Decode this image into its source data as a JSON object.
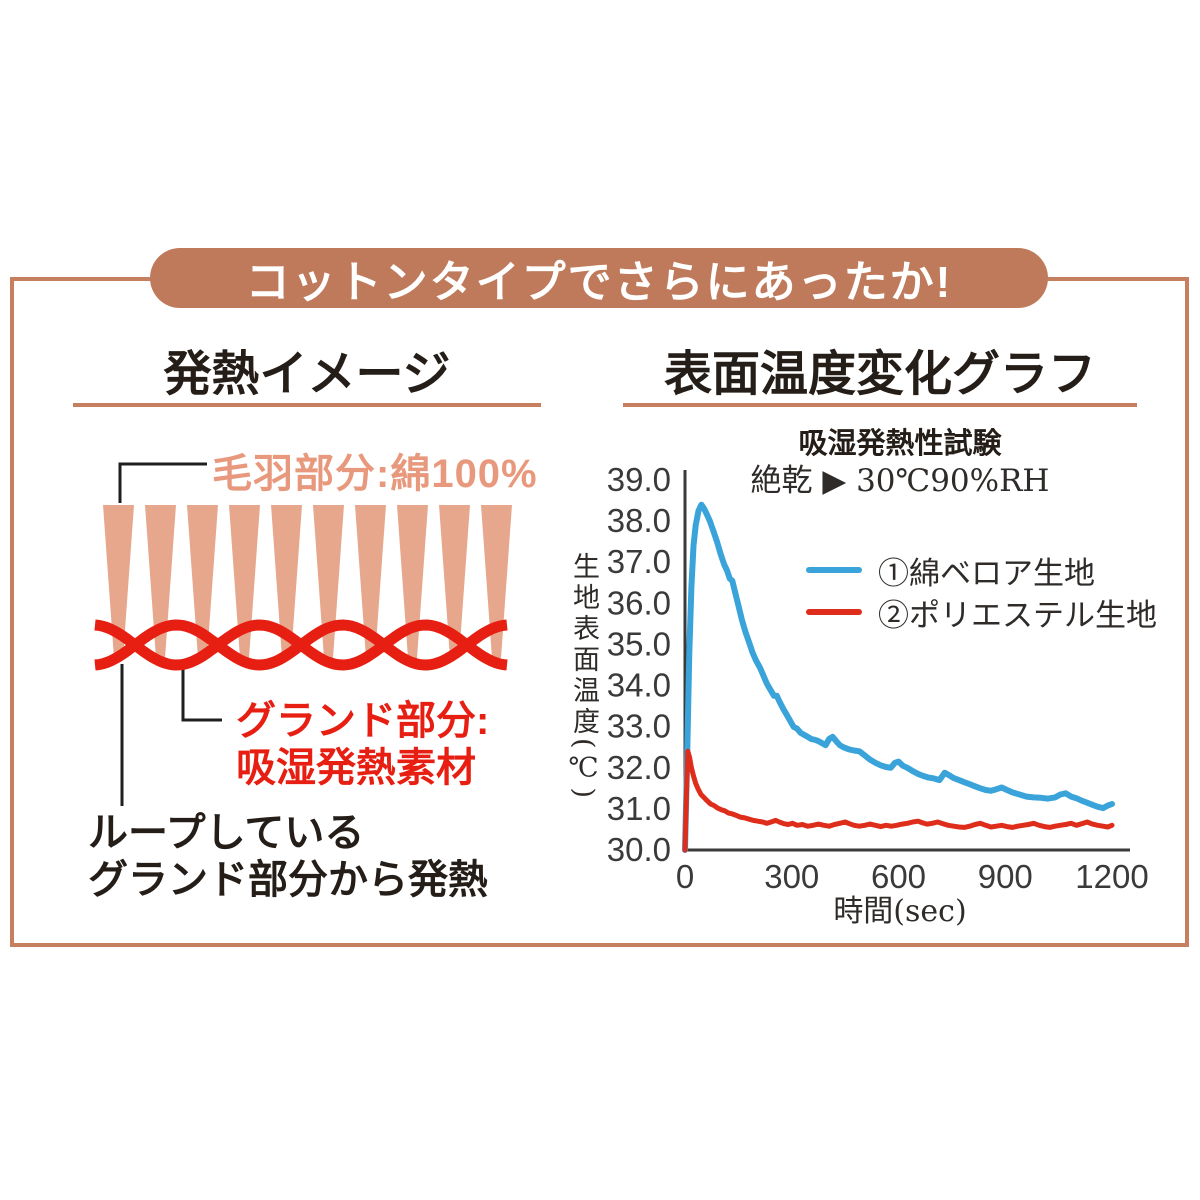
{
  "theme": {
    "banner_bg": "#bf7a5b",
    "frame_border": "#c6805f",
    "ink": "#241d18",
    "fiber": "#e7a78c",
    "fluff_text": "#e8997d",
    "diagram_red": "#e71f13",
    "axis": "#3a3a3a"
  },
  "banner": {
    "label": "コットンタイプでさらにあったか!"
  },
  "left_panel": {
    "heading": "発熱イメージ",
    "fluff_label": "毛羽部分:綿100%",
    "ground_label": [
      "グランド部分:",
      "吸湿発熱素材"
    ],
    "loop_note": [
      "ループしている",
      "グランド部分から発熱"
    ]
  },
  "right_panel": {
    "heading": "表面温度変化グラフ"
  },
  "chart_data": {
    "type": "line",
    "title": "吸湿発熱性試験",
    "subtitle": "絶乾 ▶ 30℃90%RH",
    "xlabel": "時間(sec)",
    "ylabel": "生地表面温度(℃)",
    "xlim": [
      0,
      1200
    ],
    "ylim": [
      30.0,
      39.0
    ],
    "xticks": [
      0,
      300,
      600,
      900,
      1200
    ],
    "yticks": [
      39.0,
      38.0,
      37.0,
      36.0,
      35.0,
      34.0,
      33.0,
      32.0,
      31.0,
      30.0
    ],
    "grid": false,
    "legend_position": "upper right inside",
    "series": [
      {
        "name": "①綿ベロア生地",
        "color": "#3aa4da",
        "width": 6,
        "points": [
          [
            0,
            30.0
          ],
          [
            6,
            32.2
          ],
          [
            12,
            34.8
          ],
          [
            18,
            36.4
          ],
          [
            24,
            37.4
          ],
          [
            30,
            37.9
          ],
          [
            38,
            38.25
          ],
          [
            46,
            38.4
          ],
          [
            54,
            38.3
          ],
          [
            62,
            38.15
          ],
          [
            70,
            38.0
          ],
          [
            80,
            37.75
          ],
          [
            90,
            37.5
          ],
          [
            100,
            37.2
          ],
          [
            110,
            36.95
          ],
          [
            118,
            36.8
          ],
          [
            126,
            36.6
          ],
          [
            133,
            36.55
          ],
          [
            140,
            36.3
          ],
          [
            150,
            35.95
          ],
          [
            160,
            35.6
          ],
          [
            170,
            35.3
          ],
          [
            180,
            35.05
          ],
          [
            190,
            34.8
          ],
          [
            200,
            34.6
          ],
          [
            210,
            34.45
          ],
          [
            220,
            34.25
          ],
          [
            230,
            34.05
          ],
          [
            240,
            33.9
          ],
          [
            250,
            33.75
          ],
          [
            258,
            33.75
          ],
          [
            266,
            33.6
          ],
          [
            275,
            33.45
          ],
          [
            285,
            33.3
          ],
          [
            295,
            33.15
          ],
          [
            305,
            33.0
          ],
          [
            315,
            32.95
          ],
          [
            325,
            32.85
          ],
          [
            335,
            32.8
          ],
          [
            345,
            32.75
          ],
          [
            355,
            32.7
          ],
          [
            365,
            32.68
          ],
          [
            375,
            32.65
          ],
          [
            385,
            32.6
          ],
          [
            395,
            32.55
          ],
          [
            405,
            32.7
          ],
          [
            415,
            32.75
          ],
          [
            425,
            32.65
          ],
          [
            435,
            32.55
          ],
          [
            445,
            32.5
          ],
          [
            460,
            32.45
          ],
          [
            475,
            32.42
          ],
          [
            490,
            32.4
          ],
          [
            505,
            32.3
          ],
          [
            520,
            32.2
          ],
          [
            535,
            32.12
          ],
          [
            550,
            32.06
          ],
          [
            565,
            32.02
          ],
          [
            578,
            32.0
          ],
          [
            590,
            32.12
          ],
          [
            600,
            32.15
          ],
          [
            612,
            32.05
          ],
          [
            625,
            32.0
          ],
          [
            640,
            31.92
          ],
          [
            655,
            31.85
          ],
          [
            670,
            31.8
          ],
          [
            685,
            31.76
          ],
          [
            700,
            31.74
          ],
          [
            715,
            31.7
          ],
          [
            730,
            31.88
          ],
          [
            742,
            31.82
          ],
          [
            755,
            31.75
          ],
          [
            770,
            31.7
          ],
          [
            785,
            31.65
          ],
          [
            800,
            31.6
          ],
          [
            815,
            31.55
          ],
          [
            830,
            31.5
          ],
          [
            845,
            31.46
          ],
          [
            860,
            31.44
          ],
          [
            875,
            31.48
          ],
          [
            890,
            31.52
          ],
          [
            905,
            31.46
          ],
          [
            920,
            31.4
          ],
          [
            940,
            31.35
          ],
          [
            960,
            31.3
          ],
          [
            980,
            31.28
          ],
          [
            1000,
            31.27
          ],
          [
            1020,
            31.25
          ],
          [
            1040,
            31.28
          ],
          [
            1055,
            31.35
          ],
          [
            1070,
            31.38
          ],
          [
            1085,
            31.3
          ],
          [
            1100,
            31.26
          ],
          [
            1115,
            31.2
          ],
          [
            1130,
            31.15
          ],
          [
            1145,
            31.1
          ],
          [
            1160,
            31.05
          ],
          [
            1175,
            31.02
          ],
          [
            1188,
            31.08
          ],
          [
            1200,
            31.12
          ]
        ]
      },
      {
        "name": "②ポリエステル生地",
        "color": "#de2d1b",
        "width": 5,
        "points": [
          [
            0,
            30.0
          ],
          [
            4,
            31.3
          ],
          [
            8,
            32.4
          ],
          [
            13,
            32.25
          ],
          [
            18,
            32.0
          ],
          [
            24,
            31.8
          ],
          [
            30,
            31.62
          ],
          [
            37,
            31.48
          ],
          [
            45,
            31.35
          ],
          [
            53,
            31.28
          ],
          [
            62,
            31.2
          ],
          [
            72,
            31.12
          ],
          [
            82,
            31.08
          ],
          [
            92,
            31.02
          ],
          [
            102,
            30.98
          ],
          [
            112,
            30.95
          ],
          [
            122,
            30.9
          ],
          [
            132,
            30.88
          ],
          [
            142,
            30.85
          ],
          [
            155,
            30.8
          ],
          [
            168,
            30.78
          ],
          [
            180,
            30.75
          ],
          [
            192,
            30.72
          ],
          [
            205,
            30.7
          ],
          [
            218,
            30.68
          ],
          [
            230,
            30.65
          ],
          [
            242,
            30.68
          ],
          [
            255,
            30.72
          ],
          [
            265,
            30.68
          ],
          [
            278,
            30.64
          ],
          [
            290,
            30.62
          ],
          [
            302,
            30.65
          ],
          [
            315,
            30.6
          ],
          [
            330,
            30.62
          ],
          [
            345,
            30.58
          ],
          [
            360,
            30.6
          ],
          [
            375,
            30.63
          ],
          [
            390,
            30.6
          ],
          [
            405,
            30.58
          ],
          [
            420,
            30.62
          ],
          [
            435,
            30.65
          ],
          [
            450,
            30.68
          ],
          [
            462,
            30.64
          ],
          [
            475,
            30.6
          ],
          [
            490,
            30.58
          ],
          [
            505,
            30.6
          ],
          [
            520,
            30.63
          ],
          [
            535,
            30.6
          ],
          [
            550,
            30.57
          ],
          [
            565,
            30.6
          ],
          [
            580,
            30.58
          ],
          [
            595,
            30.6
          ],
          [
            610,
            30.63
          ],
          [
            625,
            30.65
          ],
          [
            640,
            30.68
          ],
          [
            655,
            30.7
          ],
          [
            668,
            30.66
          ],
          [
            680,
            30.63
          ],
          [
            695,
            30.65
          ],
          [
            710,
            30.68
          ],
          [
            725,
            30.64
          ],
          [
            740,
            30.6
          ],
          [
            755,
            30.58
          ],
          [
            770,
            30.56
          ],
          [
            785,
            30.55
          ],
          [
            800,
            30.58
          ],
          [
            815,
            30.62
          ],
          [
            830,
            30.65
          ],
          [
            845,
            30.6
          ],
          [
            860,
            30.56
          ],
          [
            875,
            30.58
          ],
          [
            890,
            30.6
          ],
          [
            905,
            30.57
          ],
          [
            920,
            30.55
          ],
          [
            935,
            30.58
          ],
          [
            950,
            30.6
          ],
          [
            965,
            30.62
          ],
          [
            980,
            30.65
          ],
          [
            995,
            30.6
          ],
          [
            1010,
            30.57
          ],
          [
            1025,
            30.55
          ],
          [
            1040,
            30.58
          ],
          [
            1055,
            30.6
          ],
          [
            1070,
            30.62
          ],
          [
            1085,
            30.65
          ],
          [
            1100,
            30.6
          ],
          [
            1115,
            30.64
          ],
          [
            1130,
            30.68
          ],
          [
            1145,
            30.63
          ],
          [
            1160,
            30.6
          ],
          [
            1175,
            30.58
          ],
          [
            1188,
            30.56
          ],
          [
            1200,
            30.6
          ]
        ]
      }
    ]
  }
}
